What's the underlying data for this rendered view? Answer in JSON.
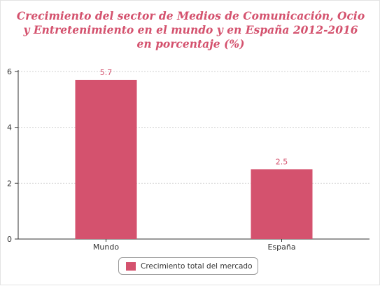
{
  "colors": {
    "bar": "#d4526e",
    "title": "#d4526e",
    "axis": "#333333",
    "grid": "#d0d0d0"
  },
  "chart_data": {
    "type": "bar",
    "title": "Crecimiento del sector de Medios de Comunicación, Ocio y Entretenimiento en el mundo y en España 2012-2016 en porcentaje (%)",
    "categories": [
      "Mundo",
      "España"
    ],
    "series": [
      {
        "name": "Crecimiento total del mercado",
        "values": [
          5.7,
          2.5
        ]
      }
    ],
    "data_labels": [
      "5.7",
      "2.5"
    ],
    "ylim": [
      0,
      6
    ],
    "yticks": [
      0,
      2,
      4,
      6
    ],
    "grid": true,
    "legend_position": "bottom"
  }
}
